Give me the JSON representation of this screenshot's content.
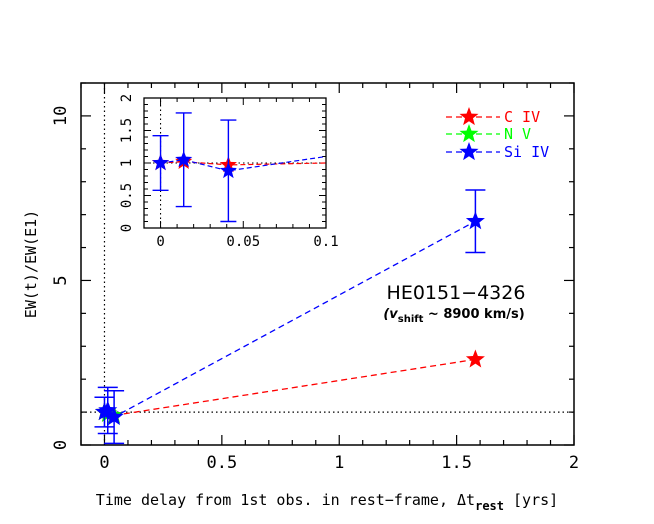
{
  "chart_data": [
    {
      "type": "scatter",
      "panel": "main",
      "xlabel": "Time delay from 1st obs. in rest−frame, Δt",
      "xlabel_sub": "rest",
      "xlabel_tail": " [yrs]",
      "ylabel": "EW(t)/EW(E1)",
      "xlim": [
        -0.1,
        2.0
      ],
      "ylim": [
        0,
        11
      ],
      "x_ticks": [
        0,
        0.5,
        1,
        1.5,
        2
      ],
      "x_tick_labels": [
        "0",
        "0.5",
        "1",
        "1.5",
        "2"
      ],
      "y_ticks": [
        0,
        5,
        10
      ],
      "y_tick_labels": [
        "0",
        "5",
        "10"
      ],
      "reference_lines": {
        "horizontal_y": 1,
        "vertical_x": 0
      },
      "annotation": {
        "title": "HE0151−4326",
        "subtitle_prefix": "(v",
        "subtitle_sub": "shift",
        "subtitle_suffix": " ~ 8900 km/s)"
      },
      "series": [
        {
          "name": "C IV",
          "color": "#ff0000",
          "x": [
            0,
            0.014,
            0.041,
            1.58
          ],
          "y": [
            1.0,
            0.95,
            0.9,
            2.6
          ],
          "yerr": [
            0,
            0,
            0,
            0
          ]
        },
        {
          "name": "N V",
          "color": "#00ff00",
          "x": [
            0,
            0.014,
            0.041
          ],
          "y": [
            1.0,
            0.95,
            0.9
          ],
          "yerr": [
            0,
            0,
            0
          ]
        },
        {
          "name": "Si IV",
          "color": "#0000ff",
          "x": [
            0,
            0.014,
            0.041,
            1.58
          ],
          "y": [
            1.0,
            1.05,
            0.85,
            6.8
          ],
          "yerr": [
            0.45,
            0.7,
            0.8,
            0.95
          ]
        }
      ],
      "legend": {
        "position": "top-right",
        "entries": [
          "C IV",
          "N V",
          "Si IV"
        ]
      }
    },
    {
      "type": "scatter",
      "panel": "inset",
      "xlim": [
        -0.01,
        0.1
      ],
      "ylim": [
        0,
        2
      ],
      "x_ticks": [
        0,
        0.05,
        0.1
      ],
      "x_tick_labels": [
        "0",
        "0.05",
        "0.1"
      ],
      "y_ticks": [
        0,
        0.5,
        1,
        1.5,
        2
      ],
      "y_tick_labels": [
        "0",
        "0.5",
        "1",
        "1.5",
        "2"
      ],
      "series": [
        {
          "name": "C IV",
          "color": "#ff0000",
          "x": [
            0,
            0.014,
            0.041,
            0.1
          ],
          "y": [
            1.0,
            1.02,
            0.97,
            1.0
          ],
          "yerr": [
            0,
            0,
            0,
            0
          ]
        },
        {
          "name": "Si IV",
          "color": "#0000ff",
          "x": [
            0,
            0.014,
            0.041,
            0.1
          ],
          "y": [
            1.0,
            1.05,
            0.88,
            1.1
          ],
          "yerr": [
            0.42,
            0.72,
            0.78,
            0
          ]
        }
      ]
    }
  ]
}
